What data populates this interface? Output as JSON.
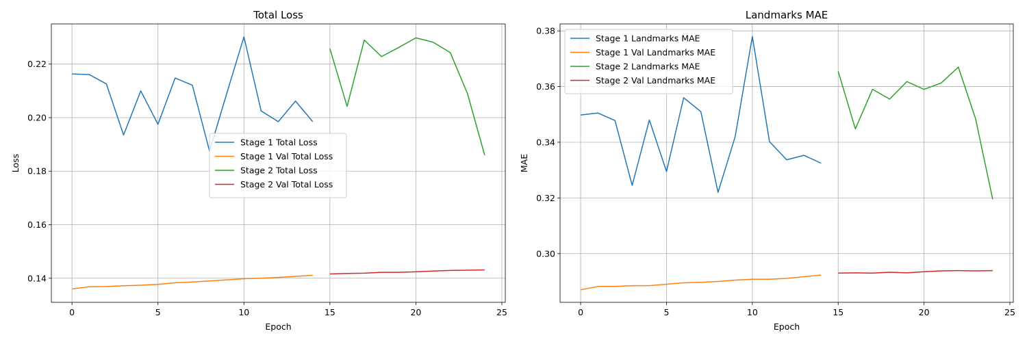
{
  "chart_data": [
    {
      "type": "line",
      "title": "Total Loss",
      "xlabel": "Epoch",
      "ylabel": "Loss",
      "xlim": [
        -1.2,
        25.2
      ],
      "ylim": [
        0.131,
        0.235
      ],
      "xticks": [
        0,
        5,
        10,
        15,
        20,
        25
      ],
      "yticks": [
        0.14,
        0.16,
        0.18,
        0.2,
        0.22
      ],
      "ytick_labels": [
        "0.14",
        "0.16",
        "0.18",
        "0.20",
        "0.22"
      ],
      "grid": true,
      "legend_position": "center",
      "series": [
        {
          "name": "Stage 1 Total Loss",
          "color": "#1f77b4",
          "x": [
            0,
            1,
            2,
            3,
            4,
            5,
            6,
            7,
            8,
            9,
            10,
            11,
            12,
            13,
            14
          ],
          "y": [
            0.2163,
            0.2161,
            0.2126,
            0.1935,
            0.21,
            0.1975,
            0.2148,
            0.2121,
            0.1875,
            0.209,
            0.2302,
            0.2025,
            0.1985,
            0.2062,
            0.1985
          ]
        },
        {
          "name": "Stage 1 Val Total Loss",
          "color": "#ff7f0e",
          "x": [
            0,
            1,
            2,
            3,
            4,
            5,
            6,
            7,
            8,
            9,
            10,
            11,
            12,
            13,
            14
          ],
          "y": [
            0.136,
            0.1368,
            0.1369,
            0.1372,
            0.1374,
            0.1377,
            0.1383,
            0.1386,
            0.139,
            0.1394,
            0.1398,
            0.14,
            0.1403,
            0.1407,
            0.1411
          ]
        },
        {
          "name": "Stage 2 Total Loss",
          "color": "#2ca02c",
          "x": [
            15,
            16,
            17,
            18,
            19,
            20,
            21,
            22,
            23,
            24
          ],
          "y": [
            0.2258,
            0.2042,
            0.229,
            0.2228,
            0.2262,
            0.2298,
            0.2282,
            0.2243,
            0.209,
            0.186
          ]
        },
        {
          "name": "Stage 2 Val Total Loss",
          "color": "#d62728",
          "x": [
            15,
            16,
            17,
            18,
            19,
            20,
            21,
            22,
            23,
            24
          ],
          "y": [
            0.1416,
            0.1418,
            0.1419,
            0.1422,
            0.1422,
            0.1424,
            0.1427,
            0.1429,
            0.143,
            0.1431
          ]
        }
      ]
    },
    {
      "type": "line",
      "title": "Landmarks MAE",
      "xlabel": "Epoch",
      "ylabel": "MAE",
      "xlim": [
        -1.2,
        25.2
      ],
      "ylim": [
        0.2825,
        0.3825
      ],
      "xticks": [
        0,
        5,
        10,
        15,
        20,
        25
      ],
      "yticks": [
        0.3,
        0.32,
        0.34,
        0.36,
        0.38
      ],
      "ytick_labels": [
        "0.30",
        "0.32",
        "0.34",
        "0.36",
        "0.38"
      ],
      "grid": true,
      "legend_position": "top-left",
      "series": [
        {
          "name": "Stage 1 Landmarks MAE",
          "color": "#1f77b4",
          "x": [
            0,
            1,
            2,
            3,
            4,
            5,
            6,
            7,
            8,
            9,
            10,
            11,
            12,
            13,
            14
          ],
          "y": [
            0.3498,
            0.3505,
            0.3478,
            0.3245,
            0.348,
            0.3295,
            0.356,
            0.351,
            0.322,
            0.342,
            0.378,
            0.3402,
            0.3337,
            0.3353,
            0.3325
          ]
        },
        {
          "name": "Stage 1 Val Landmarks MAE",
          "color": "#ff7f0e",
          "x": [
            0,
            1,
            2,
            3,
            4,
            5,
            6,
            7,
            8,
            9,
            10,
            11,
            12,
            13,
            14
          ],
          "y": [
            0.287,
            0.2882,
            0.2882,
            0.2885,
            0.2885,
            0.289,
            0.2895,
            0.2897,
            0.29,
            0.2905,
            0.2908,
            0.2908,
            0.2911,
            0.2917,
            0.2923
          ]
        },
        {
          "name": "Stage 2 Landmarks MAE",
          "color": "#2ca02c",
          "x": [
            15,
            16,
            17,
            18,
            19,
            20,
            21,
            22,
            23,
            24
          ],
          "y": [
            0.3655,
            0.3448,
            0.359,
            0.3555,
            0.3618,
            0.359,
            0.3613,
            0.367,
            0.3485,
            0.3195
          ]
        },
        {
          "name": "Stage 2 Val Landmarks MAE",
          "color": "#d62728",
          "x": [
            15,
            16,
            17,
            18,
            19,
            20,
            21,
            22,
            23,
            24
          ],
          "y": [
            0.293,
            0.2931,
            0.293,
            0.2933,
            0.2931,
            0.2935,
            0.2938,
            0.2939,
            0.2938,
            0.2939
          ]
        }
      ]
    }
  ]
}
